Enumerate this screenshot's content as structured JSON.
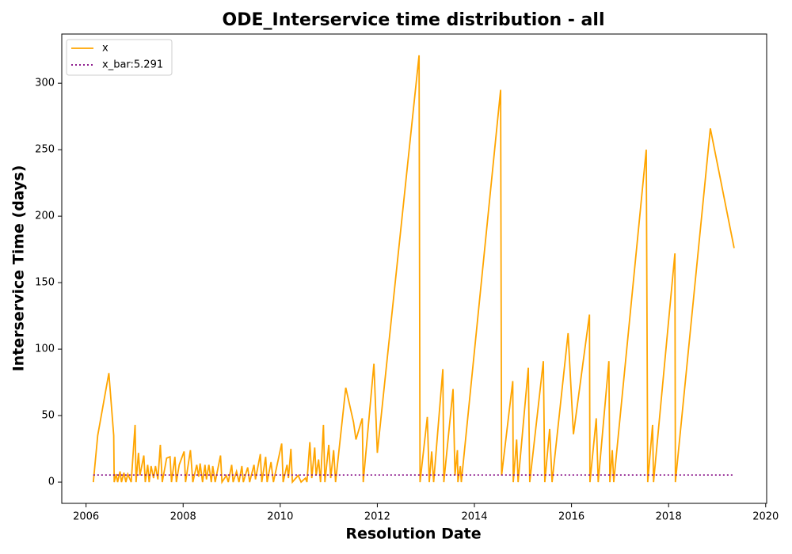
{
  "chart_data": {
    "type": "line",
    "title": "ODE_Interservice time distribution - all",
    "x_label": "Resolution Date",
    "y_label": "Interservice Time (days)",
    "xlim": [
      2005.5,
      2020.02
    ],
    "ylim": [
      -16,
      337
    ],
    "xticks": [
      2006,
      2008,
      2010,
      2012,
      2014,
      2016,
      2018,
      2020
    ],
    "yticks": [
      0,
      50,
      100,
      150,
      200,
      250,
      300
    ],
    "legend": "upper left",
    "series": [
      {
        "name": "x",
        "color": "#ffa500",
        "linestyle": "solid",
        "x": [
          2006.15,
          2006.24,
          2006.47,
          2006.57,
          2006.58,
          2006.62,
          2006.65,
          2006.7,
          2006.73,
          2006.78,
          2006.82,
          2006.86,
          2006.93,
          2007.01,
          2007.03,
          2007.08,
          2007.11,
          2007.19,
          2007.22,
          2007.27,
          2007.3,
          2007.34,
          2007.39,
          2007.43,
          2007.48,
          2007.53,
          2007.57,
          2007.66,
          2007.73,
          2007.76,
          2007.83,
          2007.86,
          2007.92,
          2008.02,
          2008.05,
          2008.15,
          2008.2,
          2008.28,
          2008.32,
          2008.35,
          2008.4,
          2008.45,
          2008.48,
          2008.53,
          2008.58,
          2008.61,
          2008.66,
          2008.77,
          2008.8,
          2008.89,
          2008.93,
          2009.0,
          2009.03,
          2009.1,
          2009.15,
          2009.21,
          2009.24,
          2009.33,
          2009.37,
          2009.46,
          2009.49,
          2009.59,
          2009.62,
          2009.7,
          2009.73,
          2009.81,
          2009.86,
          2010.03,
          2010.06,
          2010.14,
          2010.17,
          2010.22,
          2010.25,
          2010.37,
          2010.43,
          2010.52,
          2010.55,
          2010.61,
          2010.65,
          2010.71,
          2010.74,
          2010.79,
          2010.83,
          2010.89,
          2010.92,
          2011.0,
          2011.04,
          2011.1,
          2011.14,
          2011.35,
          2011.51,
          2011.56,
          2011.69,
          2011.71,
          2011.93,
          2012.0,
          2012.86,
          2012.88,
          2013.03,
          2013.07,
          2013.12,
          2013.16,
          2013.35,
          2013.37,
          2013.56,
          2013.6,
          2013.65,
          2013.66,
          2013.71,
          2013.73,
          2014.54,
          2014.56,
          2014.79,
          2014.8,
          2014.87,
          2014.9,
          2015.11,
          2015.14,
          2015.42,
          2015.45,
          2015.55,
          2015.6,
          2015.93,
          2016.04,
          2016.37,
          2016.38,
          2016.51,
          2016.55,
          2016.77,
          2016.79,
          2016.84,
          2016.87,
          2017.54,
          2017.57,
          2017.67,
          2017.69,
          2018.13,
          2018.14,
          2018.86,
          2019.35
        ],
        "values": [
          0,
          35,
          82,
          35,
          0,
          6,
          0,
          8,
          0,
          7,
          0,
          6,
          0,
          43,
          0,
          22,
          5,
          20,
          0,
          13,
          0,
          12,
          3,
          12,
          2,
          28,
          0,
          18,
          19,
          0,
          19,
          0,
          13,
          23,
          0,
          24,
          0,
          13,
          4,
          14,
          0,
          13,
          2,
          13,
          0,
          12,
          0,
          20,
          0,
          5,
          0,
          13,
          0,
          8,
          0,
          12,
          0,
          11,
          0,
          13,
          2,
          21,
          0,
          19,
          0,
          15,
          0,
          29,
          0,
          13,
          3,
          25,
          0,
          5,
          0,
          3,
          0,
          30,
          3,
          26,
          5,
          17,
          0,
          43,
          0,
          28,
          3,
          24,
          0,
          71,
          45,
          32,
          48,
          0,
          89,
          22,
          321,
          0,
          49,
          0,
          23,
          0,
          85,
          0,
          70,
          5,
          24,
          0,
          12,
          0,
          295,
          5,
          76,
          0,
          32,
          0,
          86,
          0,
          91,
          0,
          40,
          0,
          112,
          36,
          126,
          0,
          48,
          0,
          91,
          0,
          24,
          0,
          250,
          0,
          43,
          0,
          172,
          0,
          266,
          176
        ]
      },
      {
        "name": "x_bar:5.291",
        "color": "#800080",
        "linestyle": "dotted",
        "x": [
          2006.15,
          2019.35
        ],
        "values": [
          5.291,
          5.291
        ]
      }
    ]
  }
}
